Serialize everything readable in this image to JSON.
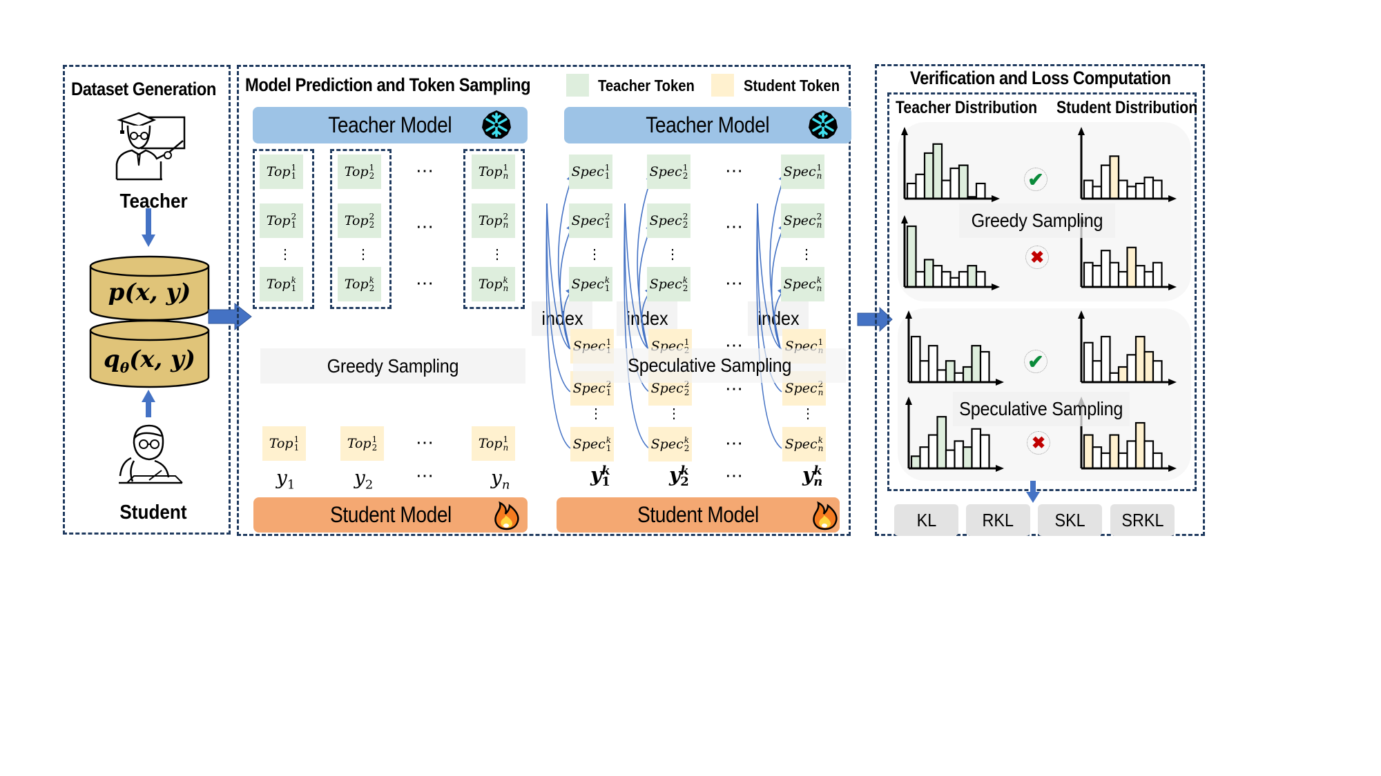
{
  "panels": {
    "dataset": {
      "title": "Dataset Generation",
      "teacher_label": "Teacher",
      "student_label": "Student",
      "db_top": "p(x, y)",
      "db_bottom_main": "q",
      "db_bottom_sub": "θ",
      "db_bottom_rest": "(x, y)"
    },
    "prediction": {
      "title": "Model Prediction and Token Sampling",
      "legend": [
        {
          "label": "Teacher Token",
          "color": "#deeedd"
        },
        {
          "label": "Student Token",
          "color": "#fff1cf"
        }
      ],
      "greedy": {
        "teacher_model_label": "Teacher Model",
        "student_model_label": "Student Model",
        "sampling_label": "Greedy Sampling",
        "columns": [
          {
            "sub": "1",
            "tokens": [
              {
                "base": "Top",
                "sup": "1"
              },
              {
                "base": "Top",
                "sup": "2"
              },
              {
                "base": "Top",
                "sup": "k"
              }
            ],
            "student_token": {
              "base": "Top",
              "sup": "1"
            },
            "y": "y",
            "y_sub": "1"
          },
          {
            "sub": "2",
            "tokens": [
              {
                "base": "Top",
                "sup": "1"
              },
              {
                "base": "Top",
                "sup": "2"
              },
              {
                "base": "Top",
                "sup": "k"
              }
            ],
            "student_token": {
              "base": "Top",
              "sup": "1"
            },
            "y": "y",
            "y_sub": "2"
          },
          {
            "sub": "n",
            "tokens": [
              {
                "base": "Top",
                "sup": "1"
              },
              {
                "base": "Top",
                "sup": "2"
              },
              {
                "base": "Top",
                "sup": "k"
              }
            ],
            "student_token": {
              "base": "Top",
              "sup": "1"
            },
            "y": "y",
            "y_sub": "n"
          }
        ],
        "ellipsis": "⋯",
        "vellipsis": "⋮"
      },
      "speculative": {
        "teacher_model_label": "Teacher Model",
        "student_model_label": "Student Model",
        "sampling_label": "Speculative Sampling",
        "index_label": "index",
        "columns": [
          {
            "sub": "1",
            "y": "y",
            "y_sup": "k",
            "y_sub": "1"
          },
          {
            "sub": "2",
            "y": "y",
            "y_sup": "k",
            "y_sub": "2"
          },
          {
            "sub": "n",
            "y": "y",
            "y_sup": "k",
            "y_sub": "n"
          }
        ],
        "token_base": "Spec",
        "sups": [
          "1",
          "2",
          "k"
        ],
        "ellipsis": "⋯",
        "vellipsis": "⋮"
      }
    },
    "verification": {
      "title": "Verification and Loss Computation",
      "teacher_dist_label": "Teacher Distribution",
      "student_dist_label": "Student Distribution",
      "groups": [
        {
          "label": "Greedy Sampling"
        },
        {
          "label": "Speculative Sampling"
        }
      ],
      "losses": [
        "KL",
        "RKL",
        "SKL",
        "SRKL"
      ]
    }
  },
  "icons": {
    "teacher_model_icon": "snowflake-icon",
    "student_model_icon": "fire-icon",
    "match_icon": "check-icon",
    "mismatch_icon": "cross-icon"
  },
  "colors": {
    "teacher_model": "#9dc3e6",
    "student_model": "#f4a872",
    "teacher_token": "#deeedd",
    "student_token": "#fff1cf",
    "arrow_blue": "#4472c4",
    "dashed_border": "#1f3a5f",
    "database": "#e0c479",
    "check": "#0a8a3a",
    "cross": "#c00000"
  },
  "chart_data": [
    {
      "type": "bar",
      "title": "Greedy Sampling — Teacher Distribution (match)",
      "values": [
        2.5,
        4,
        7.5,
        9,
        3,
        5,
        5.5,
        0.3,
        2.5
      ],
      "highlighted": [
        2,
        3,
        6,
        7
      ],
      "highlight_color": "#deeedd",
      "verdict": "match"
    },
    {
      "type": "bar",
      "title": "Greedy Sampling — Student Distribution (match)",
      "values": [
        3,
        2,
        5.5,
        7,
        3,
        2,
        2.5,
        3.5,
        3
      ],
      "highlighted": [
        3
      ],
      "highlight_color": "#fff1cf",
      "verdict": "match"
    },
    {
      "type": "bar",
      "title": "Greedy Sampling — Teacher Distribution (mismatch)",
      "values": [
        10,
        2.5,
        4.5,
        3.5,
        2.5,
        1.5,
        2.5,
        3.5,
        2.5
      ],
      "highlighted": [
        0,
        2,
        7
      ],
      "highlight_color": "#deeedd",
      "verdict": "mismatch"
    },
    {
      "type": "bar",
      "title": "Greedy Sampling — Student Distribution (mismatch)",
      "values": [
        4,
        3.5,
        6,
        4,
        2.5,
        6.5,
        3.5,
        2.5,
        4
      ],
      "highlighted": [
        5
      ],
      "highlight_color": "#fff1cf",
      "verdict": "mismatch"
    },
    {
      "type": "bar",
      "title": "Speculative Sampling — Teacher Distribution (match)",
      "values": [
        7.5,
        3.5,
        6,
        2,
        3.5,
        1.5,
        2.5,
        6,
        5
      ],
      "highlighted": [
        4,
        6,
        7
      ],
      "highlight_color": "#deeedd",
      "verdict": "match"
    },
    {
      "type": "bar",
      "title": "Speculative Sampling — Student Distribution (match)",
      "values": [
        6.5,
        3.5,
        7.5,
        1.5,
        2.5,
        4.5,
        7.5,
        5,
        3.5
      ],
      "highlighted": [
        4,
        6,
        7
      ],
      "highlight_color": "#fff1cf",
      "verdict": "match"
    },
    {
      "type": "bar",
      "title": "Speculative Sampling — Teacher Distribution (mismatch)",
      "values": [
        2,
        3.5,
        5.5,
        8.5,
        3,
        4.5,
        3.5,
        6.5,
        5.5
      ],
      "highlighted": [
        0,
        3,
        6
      ],
      "highlight_color": "#deeedd",
      "verdict": "mismatch"
    },
    {
      "type": "bar",
      "title": "Speculative Sampling — Student Distribution (mismatch)",
      "values": [
        5.5,
        3.5,
        2.5,
        5.5,
        2.5,
        4.5,
        7.5,
        4.5,
        2.5
      ],
      "highlighted": [
        0,
        3,
        6
      ],
      "highlight_color": "#fff1cf",
      "verdict": "mismatch"
    }
  ]
}
